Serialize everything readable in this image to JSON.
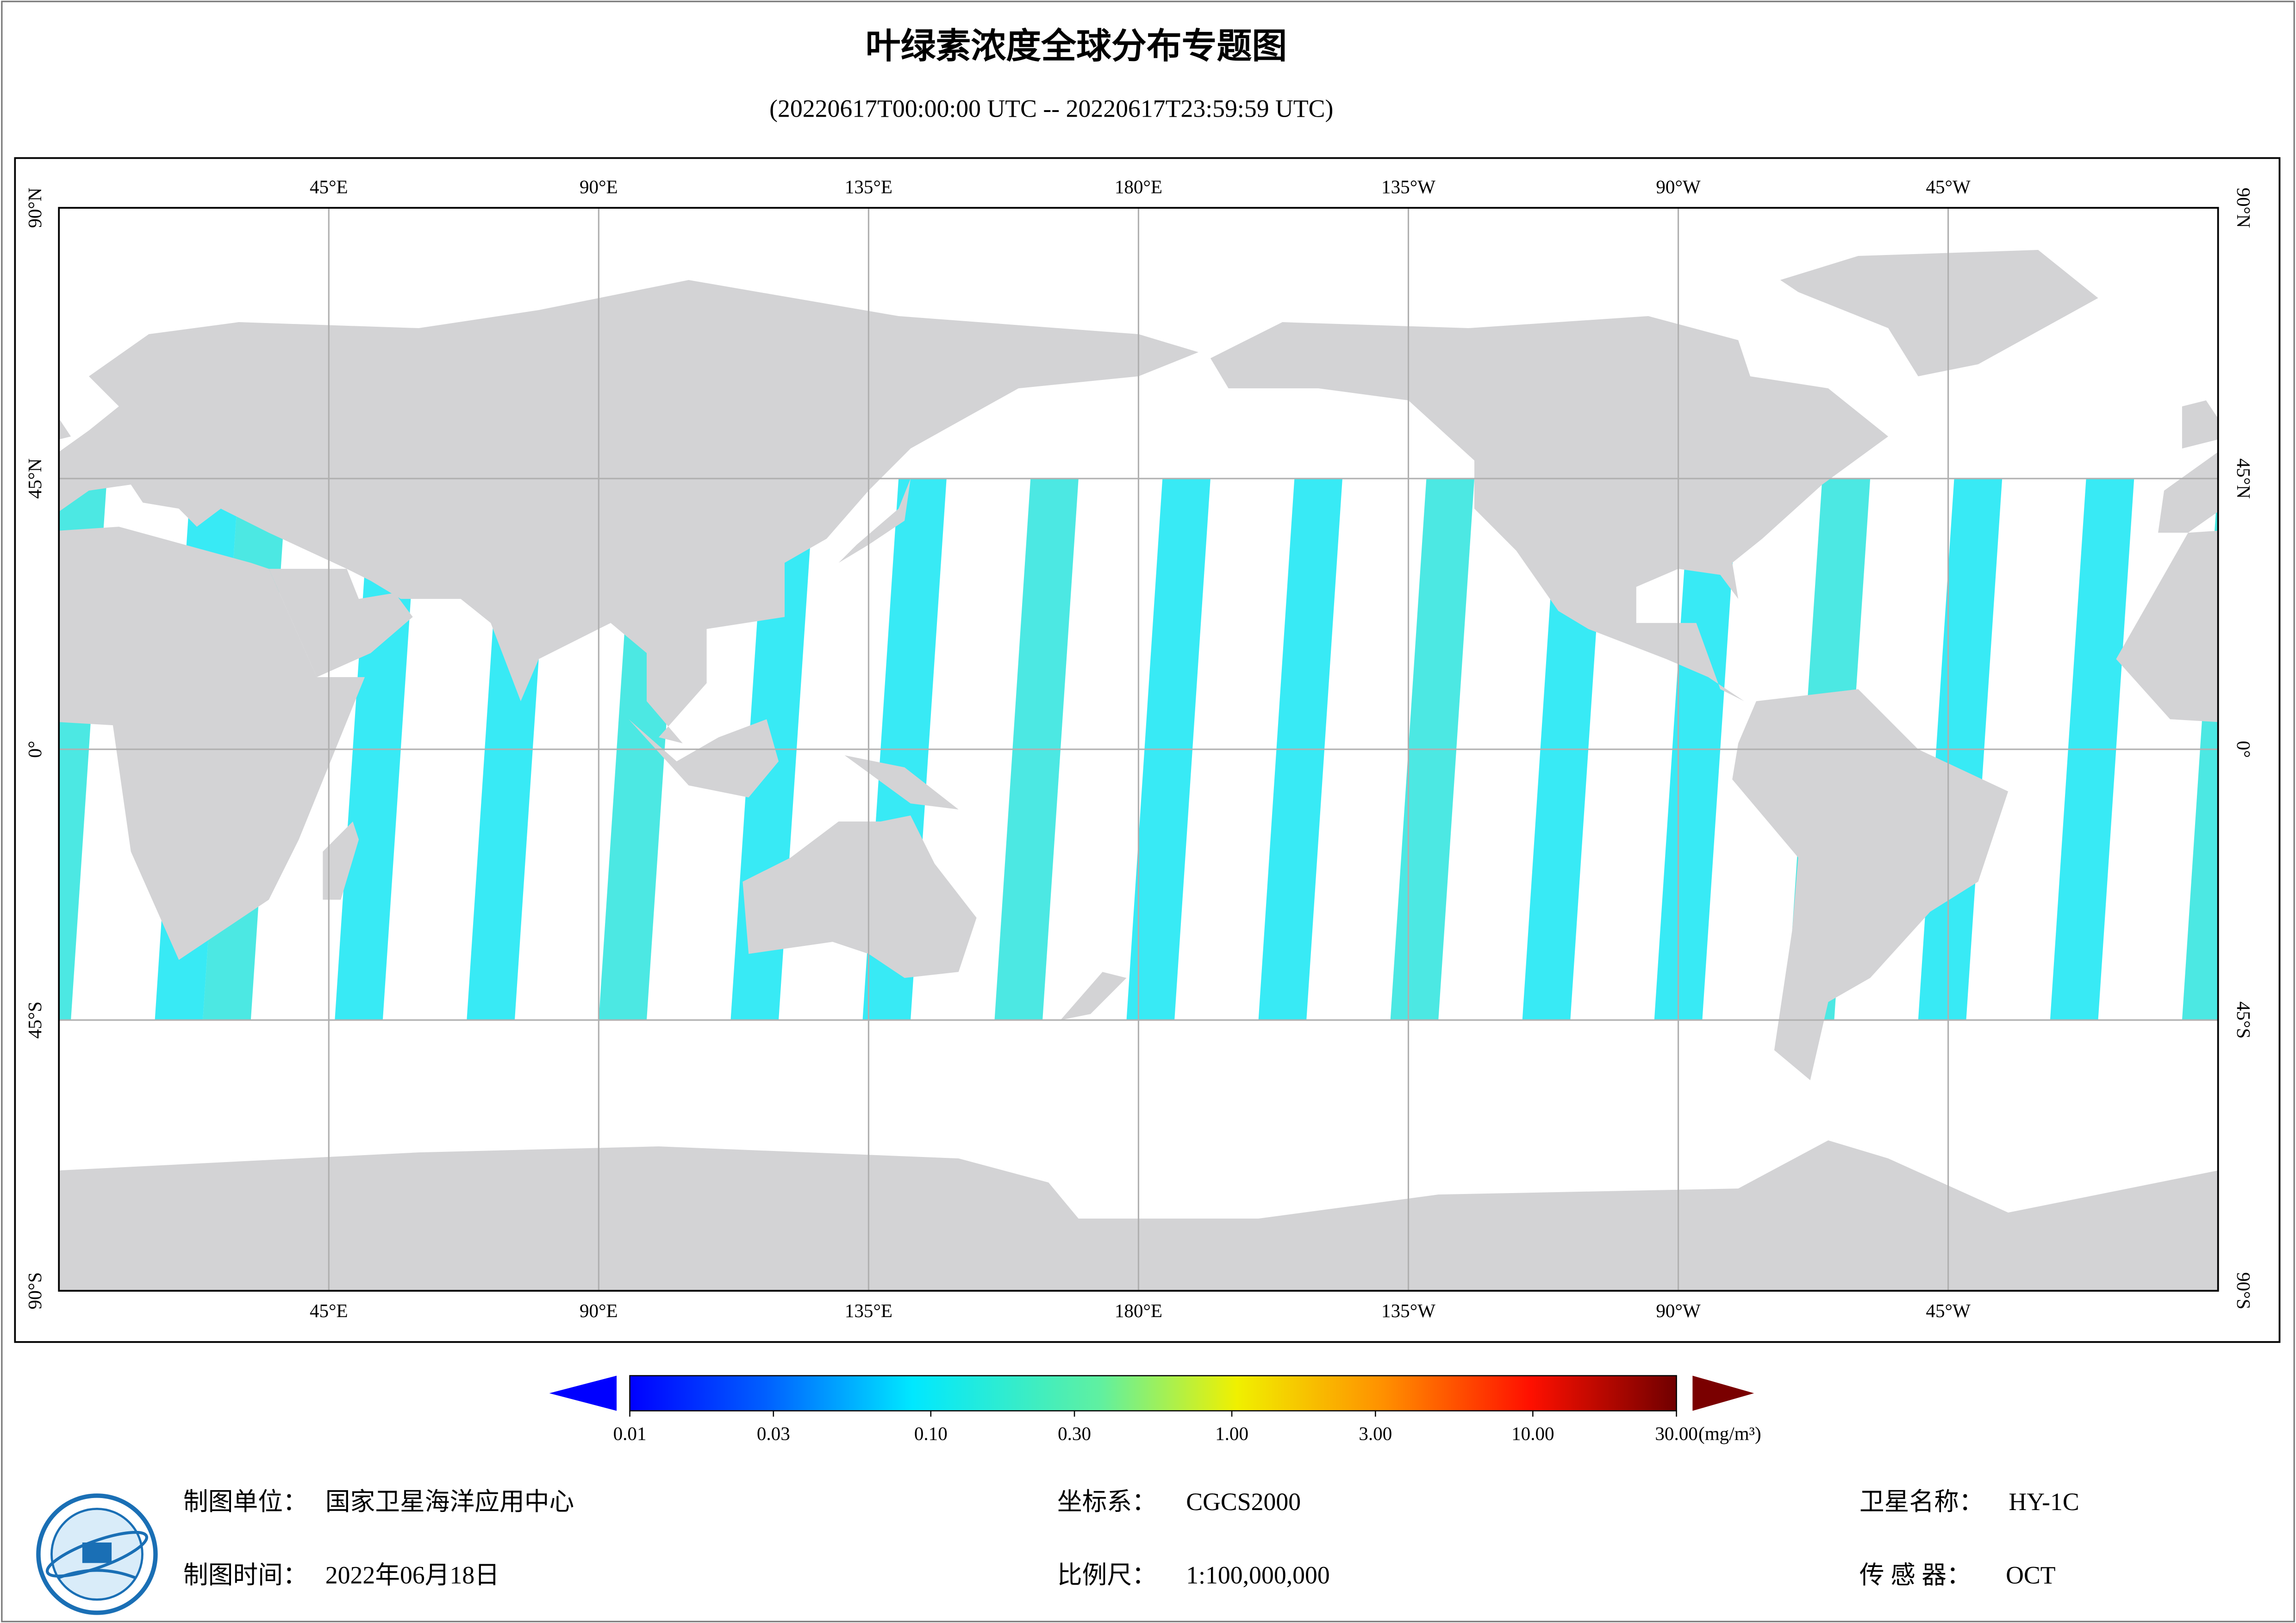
{
  "header": {
    "title": "叶绿素浓度全球分布专题图",
    "subtitle": "(20220617T00:00:00 UTC -- 20220617T23:59:59 UTC)"
  },
  "map": {
    "lon_range": [
      0,
      360
    ],
    "lat_range": [
      -90,
      90
    ],
    "grid": true,
    "lon_ticks": [
      {
        "value": 45,
        "label": "45°E"
      },
      {
        "value": 90,
        "label": "90°E"
      },
      {
        "value": 135,
        "label": "135°E"
      },
      {
        "value": 180,
        "label": "180°E"
      },
      {
        "value": 225,
        "label": "135°W"
      },
      {
        "value": 270,
        "label": "90°W"
      },
      {
        "value": 315,
        "label": "45°W"
      }
    ],
    "lat_ticks": [
      {
        "value": 90,
        "label": "90°N"
      },
      {
        "value": 45,
        "label": "45°N"
      },
      {
        "value": 0,
        "label": "0°"
      },
      {
        "value": -45,
        "label": "45°S"
      },
      {
        "value": -90,
        "label": "90°S"
      }
    ]
  },
  "colorbar": {
    "log_scale": true,
    "range": [
      0.01,
      30
    ],
    "ticks": [
      {
        "value": 0.01,
        "label": "0.01"
      },
      {
        "value": 0.03,
        "label": "0.03"
      },
      {
        "value": 0.1,
        "label": "0.10"
      },
      {
        "value": 0.3,
        "label": "0.30"
      },
      {
        "value": 1,
        "label": "1.00"
      },
      {
        "value": 3,
        "label": "3.00"
      },
      {
        "value": 10,
        "label": "10.00"
      },
      {
        "value": 30,
        "label": "30.00"
      }
    ],
    "unit": "(mg/m³)"
  },
  "footer": {
    "org_label": "制图单位：",
    "org": "国家卫星海洋应用中心",
    "date_label": "制图时间：",
    "date": "2022年06月18日",
    "crs_label": "坐标系：",
    "crs": "CGCS2000",
    "scale_label": "比例尺：",
    "scale": "1:100,000,000",
    "satellite_label": "卫星名称：",
    "satellite": "HY-1C",
    "sensor_label": "传 感 器：",
    "sensor": "OCT"
  }
}
